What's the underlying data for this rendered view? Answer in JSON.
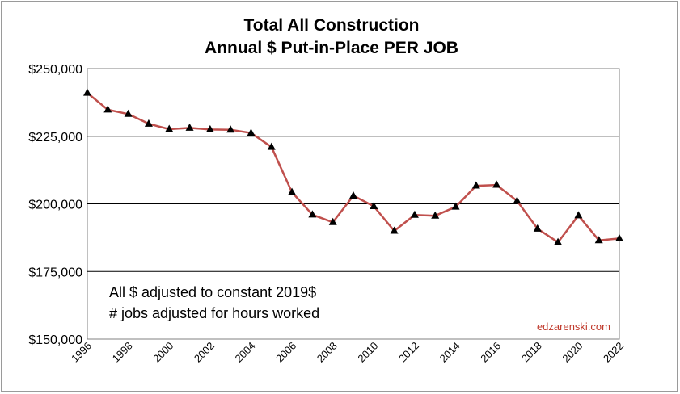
{
  "chart_data": {
    "type": "line",
    "title": [
      "Total All Construction",
      "Annual $ Put-in-Place PER JOB"
    ],
    "x": [
      1996,
      1997,
      1998,
      1999,
      2000,
      2001,
      2002,
      2003,
      2004,
      2005,
      2006,
      2007,
      2008,
      2009,
      2010,
      2011,
      2012,
      2013,
      2014,
      2015,
      2016,
      2017,
      2018,
      2019,
      2020,
      2021,
      2022
    ],
    "series": [
      {
        "values": [
          241000,
          234800,
          233200,
          229600,
          227600,
          228100,
          227500,
          227400,
          226200,
          221000,
          204300,
          196000,
          193200,
          203000,
          199100,
          190000,
          195900,
          195600,
          198900,
          206700,
          207000,
          201100,
          190800,
          185800,
          195700,
          186500,
          187200
        ]
      }
    ],
    "x_tick_labels": [
      "1996",
      "1998",
      "2000",
      "2002",
      "2004",
      "2006",
      "2008",
      "2010",
      "2012",
      "2014",
      "2016",
      "2018",
      "2020",
      "2022"
    ],
    "y_tick_labels": [
      "$150,000",
      "$175,000",
      "$200,000",
      "$225,000",
      "$250,000"
    ],
    "y_ticks": [
      150000,
      175000,
      200000,
      225000,
      250000
    ],
    "ylim": [
      150000,
      250000
    ],
    "grid": "horizontal",
    "annotations": [
      "All $ adjusted to constant 2019$",
      "# jobs adjusted for hours worked"
    ],
    "credit": "edzarenski.com",
    "colors": {
      "line": "#c0504d",
      "marker": "#000000",
      "grid": "#000000"
    }
  }
}
